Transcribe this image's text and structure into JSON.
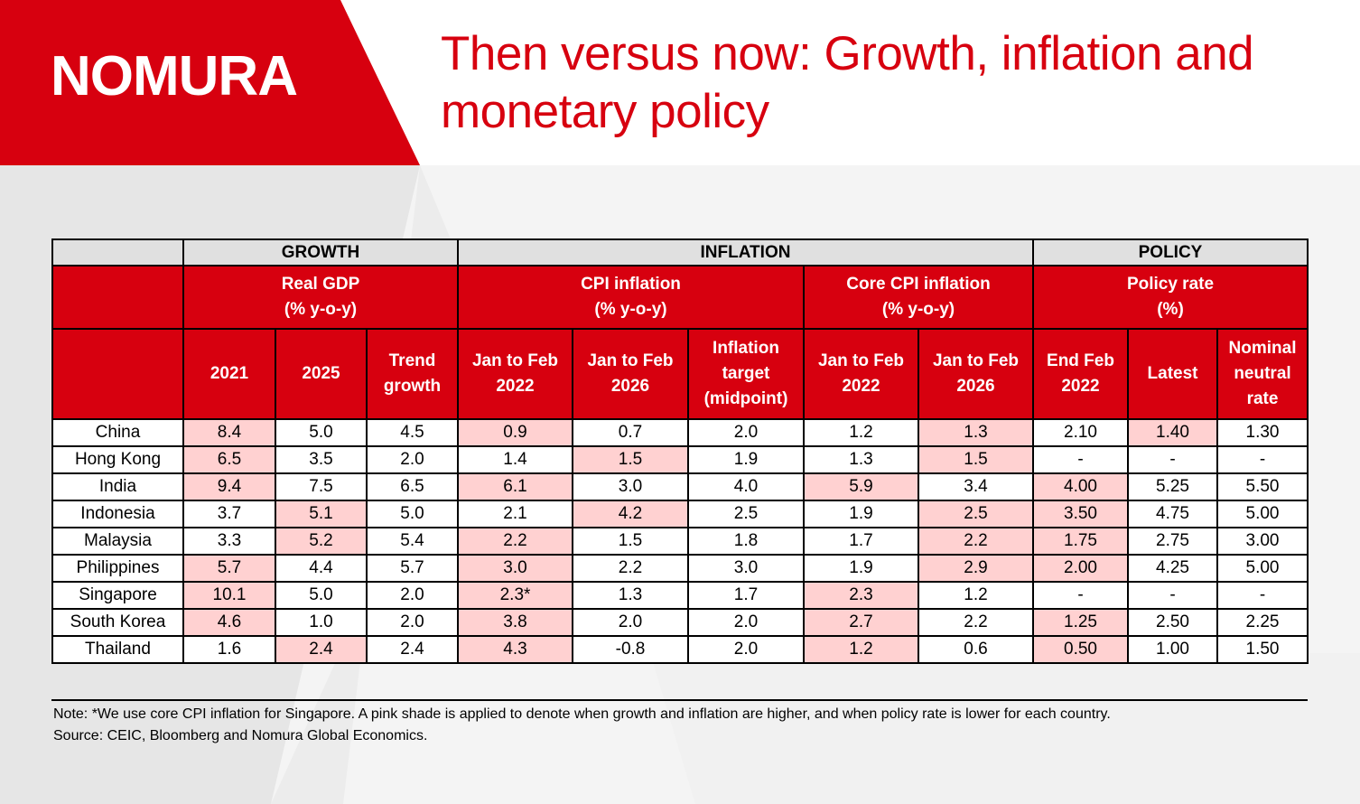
{
  "brand": {
    "logo": "NOMURA",
    "color_primary": "#d7000f",
    "color_highlight": "#ffd1d1"
  },
  "title": "Then versus now: Growth, inflation and monetary policy",
  "table": {
    "sections": [
      {
        "label": "GROWTH"
      },
      {
        "label": "INFLATION"
      },
      {
        "label": "POLICY"
      }
    ],
    "groups": [
      {
        "line1": "Real GDP",
        "line2": "(% y-o-y)"
      },
      {
        "line1": "CPI inflation",
        "line2": "(% y-o-y)"
      },
      {
        "line1": "Core CPI inflation",
        "line2": "(% y-o-y)"
      },
      {
        "line1": "Policy rate",
        "line2": "(%)"
      }
    ],
    "columns": [
      {
        "lines": [
          "2021"
        ]
      },
      {
        "lines": [
          "2025"
        ]
      },
      {
        "lines": [
          "Trend",
          "growth"
        ]
      },
      {
        "lines": [
          "Jan to Feb",
          "2022"
        ]
      },
      {
        "lines": [
          "Jan to Feb",
          "2026"
        ]
      },
      {
        "lines": [
          "Inflation",
          "target",
          "(midpoint)"
        ]
      },
      {
        "lines": [
          "Jan to Feb",
          "2022"
        ]
      },
      {
        "lines": [
          "Jan to Feb",
          "2026"
        ]
      },
      {
        "lines": [
          "End Feb",
          "2022"
        ]
      },
      {
        "lines": [
          "Latest"
        ]
      },
      {
        "lines": [
          "Nominal",
          "neutral",
          "rate"
        ]
      }
    ],
    "rows": [
      {
        "country": "China",
        "values": [
          "8.4",
          "5.0",
          "4.5",
          "0.9",
          "0.7",
          "2.0",
          "1.2",
          "1.3",
          "2.10",
          "1.40",
          "1.30"
        ],
        "highlight": [
          true,
          false,
          false,
          true,
          false,
          false,
          false,
          true,
          false,
          true,
          false
        ]
      },
      {
        "country": "Hong Kong",
        "values": [
          "6.5",
          "3.5",
          "2.0",
          "1.4",
          "1.5",
          "1.9",
          "1.3",
          "1.5",
          "-",
          "-",
          "-"
        ],
        "highlight": [
          true,
          false,
          false,
          false,
          true,
          false,
          false,
          true,
          false,
          false,
          false
        ]
      },
      {
        "country": "India",
        "values": [
          "9.4",
          "7.5",
          "6.5",
          "6.1",
          "3.0",
          "4.0",
          "5.9",
          "3.4",
          "4.00",
          "5.25",
          "5.50"
        ],
        "highlight": [
          true,
          false,
          false,
          true,
          false,
          false,
          true,
          false,
          true,
          false,
          false
        ]
      },
      {
        "country": "Indonesia",
        "values": [
          "3.7",
          "5.1",
          "5.0",
          "2.1",
          "4.2",
          "2.5",
          "1.9",
          "2.5",
          "3.50",
          "4.75",
          "5.00"
        ],
        "highlight": [
          false,
          true,
          false,
          false,
          true,
          false,
          false,
          true,
          true,
          false,
          false
        ]
      },
      {
        "country": "Malaysia",
        "values": [
          "3.3",
          "5.2",
          "5.4",
          "2.2",
          "1.5",
          "1.8",
          "1.7",
          "2.2",
          "1.75",
          "2.75",
          "3.00"
        ],
        "highlight": [
          false,
          true,
          false,
          true,
          false,
          false,
          false,
          true,
          true,
          false,
          false
        ]
      },
      {
        "country": "Philippines",
        "values": [
          "5.7",
          "4.4",
          "5.7",
          "3.0",
          "2.2",
          "3.0",
          "1.9",
          "2.9",
          "2.00",
          "4.25",
          "5.00"
        ],
        "highlight": [
          true,
          false,
          false,
          true,
          false,
          false,
          false,
          true,
          true,
          false,
          false
        ]
      },
      {
        "country": "Singapore",
        "values": [
          "10.1",
          "5.0",
          "2.0",
          "2.3*",
          "1.3",
          "1.7",
          "2.3",
          "1.2",
          "-",
          "-",
          "-"
        ],
        "highlight": [
          true,
          false,
          false,
          true,
          false,
          false,
          true,
          false,
          false,
          false,
          false
        ]
      },
      {
        "country": "South Korea",
        "values": [
          "4.6",
          "1.0",
          "2.0",
          "3.8",
          "2.0",
          "2.0",
          "2.7",
          "2.2",
          "1.25",
          "2.50",
          "2.25"
        ],
        "highlight": [
          true,
          false,
          false,
          true,
          false,
          false,
          true,
          false,
          true,
          false,
          false
        ]
      },
      {
        "country": "Thailand",
        "values": [
          "1.6",
          "2.4",
          "2.4",
          "4.3",
          "-0.8",
          "2.0",
          "1.2",
          "0.6",
          "0.50",
          "1.00",
          "1.50"
        ],
        "highlight": [
          false,
          true,
          false,
          true,
          false,
          false,
          true,
          false,
          true,
          false,
          false
        ]
      }
    ]
  },
  "footer": {
    "note": "Note: *We use core CPI inflation for Singapore. A pink shade is applied to denote when growth and inflation are higher, and when policy rate is lower for each country.",
    "source": "Source: CEIC, Bloomberg and Nomura Global Economics."
  }
}
